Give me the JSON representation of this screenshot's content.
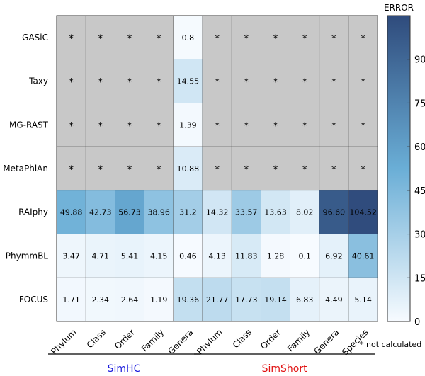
{
  "chart_data": {
    "type": "heatmap",
    "rows": [
      "GASiC",
      "Taxy",
      "MG-RAST",
      "MetaPhlAn",
      "RAIphy",
      "PhymmBL",
      "FOCUS"
    ],
    "columns": [
      "Phylum",
      "Class",
      "Order",
      "Family",
      "Genera",
      "Phylum",
      "Class",
      "Order",
      "Family",
      "Genera",
      "Species"
    ],
    "groups": [
      {
        "name": "SimHC",
        "columns": [
          0,
          1,
          2,
          3,
          4
        ],
        "color": "#1a1adc"
      },
      {
        "name": "SimShort",
        "columns": [
          5,
          6,
          7,
          8,
          9,
          10
        ],
        "color": "#e01010"
      }
    ],
    "values": [
      [
        null,
        null,
        null,
        null,
        0.8,
        null,
        null,
        null,
        null,
        null,
        null
      ],
      [
        null,
        null,
        null,
        null,
        14.55,
        null,
        null,
        null,
        null,
        null,
        null
      ],
      [
        null,
        null,
        null,
        null,
        1.39,
        null,
        null,
        null,
        null,
        null,
        null
      ],
      [
        null,
        null,
        null,
        null,
        10.88,
        null,
        null,
        null,
        null,
        null,
        null
      ],
      [
        49.88,
        42.73,
        56.73,
        38.96,
        31.2,
        14.32,
        33.57,
        13.63,
        8.02,
        96.6,
        104.52
      ],
      [
        3.47,
        4.71,
        5.41,
        4.15,
        0.46,
        4.13,
        11.83,
        1.28,
        0.1,
        6.92,
        40.61
      ],
      [
        1.71,
        2.34,
        2.64,
        1.19,
        19.36,
        21.77,
        17.73,
        19.14,
        6.83,
        4.49,
        5.14
      ]
    ],
    "labels": [
      [
        "*",
        "*",
        "*",
        "*",
        "0.8",
        "*",
        "*",
        "*",
        "*",
        "*",
        "*"
      ],
      [
        "*",
        "*",
        "*",
        "*",
        "14.55",
        "*",
        "*",
        "*",
        "*",
        "*",
        "*"
      ],
      [
        "*",
        "*",
        "*",
        "*",
        "1.39",
        "*",
        "*",
        "*",
        "*",
        "*",
        "*"
      ],
      [
        "*",
        "*",
        "*",
        "*",
        "10.88",
        "*",
        "*",
        "*",
        "*",
        "*",
        "*"
      ],
      [
        "49.88",
        "42.73",
        "56.73",
        "38.96",
        "31.2",
        "14.32",
        "33.57",
        "13.63",
        "8.02",
        "96.60",
        "104.52"
      ],
      [
        "3.47",
        "4.71",
        "5.41",
        "4.15",
        "0.46",
        "4.13",
        "11.83",
        "1.28",
        "0.1",
        "6.92",
        "40.61"
      ],
      [
        "1.71",
        "2.34",
        "2.64",
        "1.19",
        "19.36",
        "21.77",
        "17.73",
        "19.14",
        "6.83",
        "4.49",
        "5.14"
      ]
    ],
    "missing_color": "#c8c8c8",
    "colorbar": {
      "title": "ERROR",
      "min": 0,
      "max": 105,
      "ticks": [
        0,
        15,
        30,
        45,
        60,
        75,
        90
      ],
      "color_low": "#f7fbff",
      "color_mid": "#6aaed6",
      "color_high": "#2f4b7c"
    },
    "note": "* not calculated"
  }
}
